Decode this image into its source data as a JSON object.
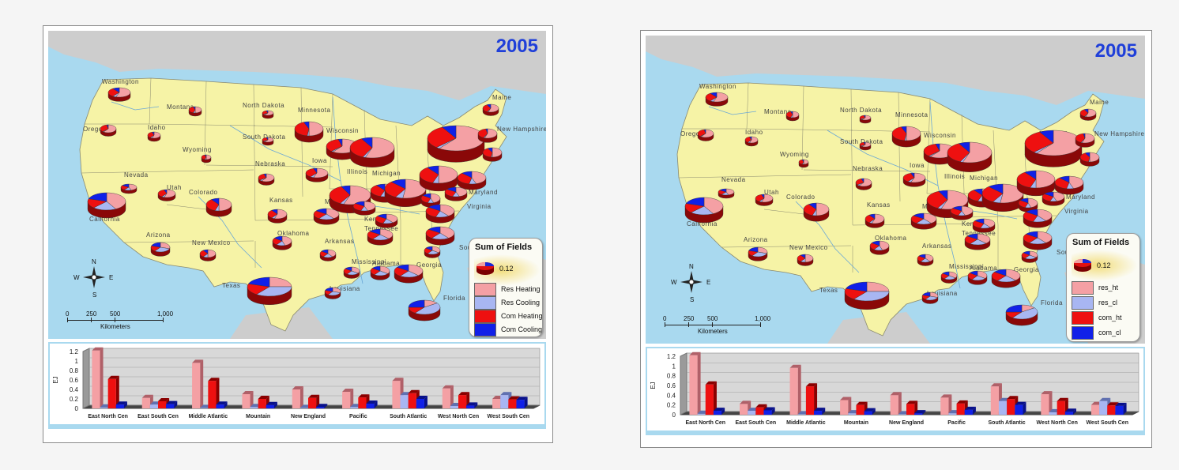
{
  "panels": [
    {
      "year": "2005",
      "legend": {
        "title": "Sum of Fields",
        "size_value": "0.12",
        "items": [
          {
            "label": "Res Heating",
            "color": "#f4a0a4"
          },
          {
            "label": "Res Cooling",
            "color": "#a8b6f2"
          },
          {
            "label": "Com Heating",
            "color": "#ee1010"
          },
          {
            "label": "Com Cooling",
            "color": "#1020e8"
          }
        ]
      },
      "scale": {
        "ticks": [
          "0",
          "250",
          "500",
          "1,000"
        ],
        "unit": "Kilometers"
      },
      "compass": {
        "n": "N",
        "s": "S",
        "e": "E",
        "w": "W"
      },
      "state_labels": [
        "Washington",
        "Montana",
        "North Dakota",
        "Minnesota",
        "Maine",
        "Oregon",
        "Idaho",
        "South Dakota",
        "Wisconsin",
        "New York",
        "New Hampshire",
        "Wyoming",
        "Michigan",
        "Iowa",
        "Nebraska",
        "Nevada",
        "Utah",
        "Colorado",
        "Illinois",
        "Kansas",
        "Missouri",
        "Maryland",
        "Virginia",
        "California",
        "Kentucky",
        "Tennessee",
        "Oklahoma",
        "Arkansas",
        "Arizona",
        "New Mexico",
        "Mississippi",
        "Alabama",
        "Georgia",
        "South Carolina",
        "Texas",
        "Louisiana",
        "Florida"
      ],
      "chart_data": {
        "type": "bar",
        "title": "",
        "ylabel": "EJ",
        "xlabel": "",
        "ylim": [
          0,
          1.2
        ],
        "yticks": [
          "0",
          "0.2",
          "0.4",
          "0.6",
          "0.8",
          "1",
          "1.2"
        ],
        "categories": [
          "East North Cen",
          "East South Cen",
          "Middle Atlantic",
          "Mountain",
          "New England",
          "Pacific",
          "South Atlantic",
          "West North Cen",
          "West South Cen"
        ],
        "series": [
          {
            "name": "Res Heating",
            "values": [
              1.22,
              0.22,
              0.96,
              0.3,
              0.4,
              0.35,
              0.58,
              0.42,
              0.2
            ]
          },
          {
            "name": "Res Cooling",
            "values": [
              0.02,
              0.08,
              0.01,
              0.03,
              0.01,
              0.03,
              0.28,
              0.05,
              0.28
            ]
          },
          {
            "name": "Com Heating",
            "values": [
              0.62,
              0.15,
              0.58,
              0.2,
              0.22,
              0.23,
              0.32,
              0.28,
              0.19
            ]
          },
          {
            "name": "Com Cooling",
            "values": [
              0.08,
              0.09,
              0.08,
              0.07,
              0.03,
              0.1,
              0.2,
              0.06,
              0.18
            ]
          }
        ]
      }
    },
    {
      "year": "2005",
      "legend": {
        "title": "Sum of Fields",
        "size_value": "0.12",
        "items": [
          {
            "label": "res_ht",
            "color": "#f4a0a4"
          },
          {
            "label": "res_cl",
            "color": "#a8b6f2"
          },
          {
            "label": "com_ht",
            "color": "#ee1010"
          },
          {
            "label": "com_cl",
            "color": "#1020e8"
          }
        ]
      },
      "scale": {
        "ticks": [
          "0",
          "250",
          "500",
          "1,000"
        ],
        "unit": "Kilometers"
      },
      "compass": {
        "n": "N",
        "s": "S",
        "e": "E",
        "w": "W"
      },
      "state_labels": [
        "Washington",
        "Montana",
        "North Dakota",
        "Minnesota",
        "Maine",
        "Oregon",
        "Idaho",
        "South Dakota",
        "Wisconsin",
        "New York",
        "New Hampshire",
        "Wyoming",
        "Michigan",
        "Iowa",
        "Nebraska",
        "Nevada",
        "Utah",
        "Colorado",
        "Illinois",
        "Kansas",
        "Missouri",
        "Maryland",
        "Virginia",
        "California",
        "Kentucky",
        "Tennessee",
        "Oklahoma",
        "Arkansas",
        "Arizona",
        "New Mexico",
        "Mississippi",
        "Alabama",
        "Georgia",
        "South Carolina",
        "Texas",
        "Louisiana",
        "Florida"
      ],
      "chart_data": {
        "type": "bar",
        "title": "",
        "ylabel": "EJ",
        "xlabel": "",
        "ylim": [
          0,
          1.2
        ],
        "yticks": [
          "0",
          "0.2",
          "0.4",
          "0.6",
          "0.8",
          "1",
          "1.2"
        ],
        "categories": [
          "East North Cen",
          "East South Cen",
          "Middle Atlantic",
          "Mountain",
          "New England",
          "Pacific",
          "South Atlantic",
          "West North Cen",
          "West South Cen"
        ],
        "series": [
          {
            "name": "res_ht",
            "values": [
              1.22,
              0.22,
              0.96,
              0.3,
              0.4,
              0.35,
              0.58,
              0.42,
              0.2
            ]
          },
          {
            "name": "res_cl",
            "values": [
              0.02,
              0.08,
              0.01,
              0.03,
              0.01,
              0.03,
              0.28,
              0.05,
              0.28
            ]
          },
          {
            "name": "com_ht",
            "values": [
              0.62,
              0.15,
              0.58,
              0.2,
              0.22,
              0.23,
              0.32,
              0.28,
              0.19
            ]
          },
          {
            "name": "com_cl",
            "values": [
              0.08,
              0.09,
              0.08,
              0.07,
              0.03,
              0.1,
              0.2,
              0.06,
              0.18
            ]
          }
        ]
      }
    }
  ]
}
